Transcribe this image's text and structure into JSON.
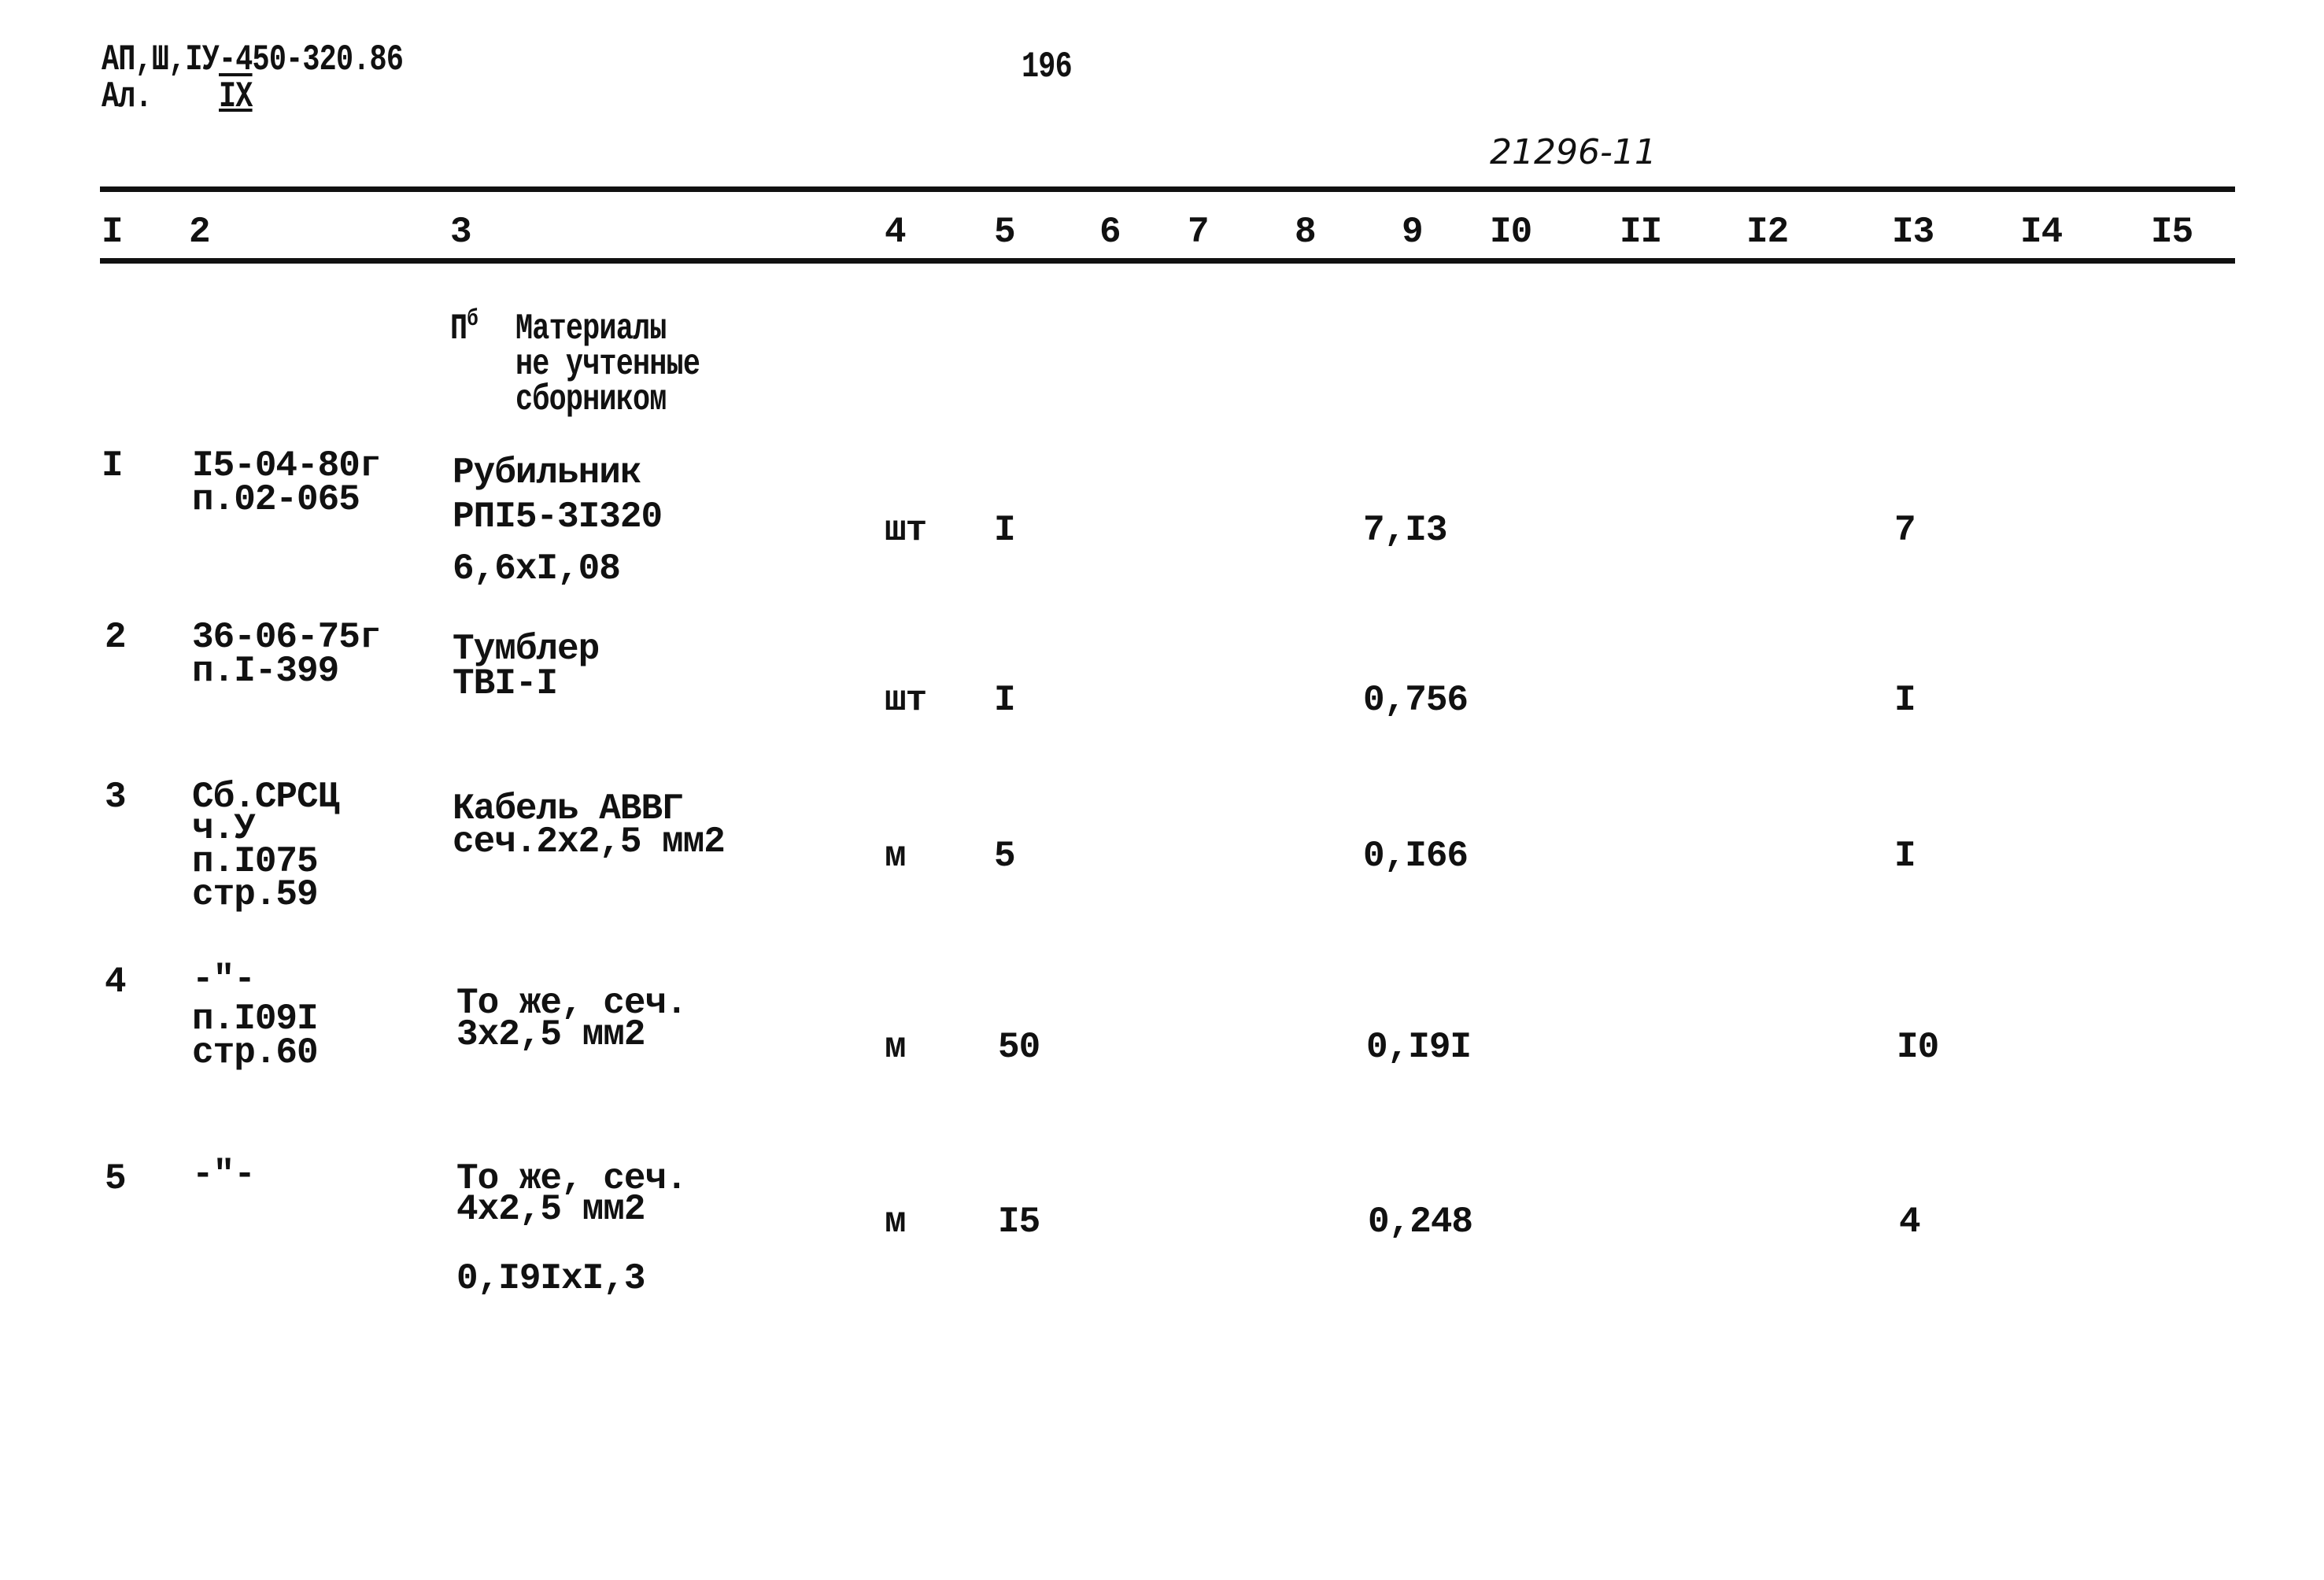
{
  "header": {
    "doc_code": "АП,Ш,IУ-450-320.86",
    "album": "Ал.",
    "album_number": "IX",
    "page_number": "196",
    "handwritten_number": "21296-11"
  },
  "columns": [
    "I",
    "2",
    "3",
    "4",
    "5",
    "6",
    "7",
    "8",
    "9",
    "I0",
    "II",
    "I2",
    "I3",
    "I4",
    "I5"
  ],
  "section": {
    "marker": "П",
    "marker_sup": "б",
    "title_lines": [
      "Материалы",
      "не учтенные",
      "сборником"
    ]
  },
  "rows": [
    {
      "num": "I",
      "code": [
        "I5-04-80г",
        "п.02-065"
      ],
      "name": [
        "Рубильник",
        "РПI5-3I320",
        "6,6xI,08"
      ],
      "unit": "шт",
      "qty": "I",
      "col9": "7,I3",
      "col13": "7"
    },
    {
      "num": "2",
      "code": [
        "36-06-75г",
        "п.I-399"
      ],
      "name": [
        "Тумблер",
        "ТВI-I"
      ],
      "unit": "шт",
      "qty": "I",
      "col9": "0,756",
      "col13": "I"
    },
    {
      "num": "3",
      "code": [
        "Сб.СРСЦ",
        "ч.У",
        "п.I075",
        "стр.59"
      ],
      "name": [
        "Кабель АВВГ",
        "сеч.2х2,5 мм2"
      ],
      "unit": "м",
      "qty": "5",
      "col9": "0,I66",
      "col13": "I"
    },
    {
      "num": "4",
      "code": [
        "-\"-",
        "п.I09I",
        "стр.60"
      ],
      "name": [
        "То же, сеч.",
        "3х2,5 мм2"
      ],
      "unit": "м",
      "qty": "50",
      "col9": "0,I9I",
      "col13": "I0"
    },
    {
      "num": "5",
      "code": [
        "-\"-"
      ],
      "name": [
        "То же, сеч.",
        "4х2,5 мм2",
        "0,I9IxI,3"
      ],
      "unit": "м",
      "qty": "I5",
      "col9": "0,248",
      "col13": "4"
    }
  ]
}
